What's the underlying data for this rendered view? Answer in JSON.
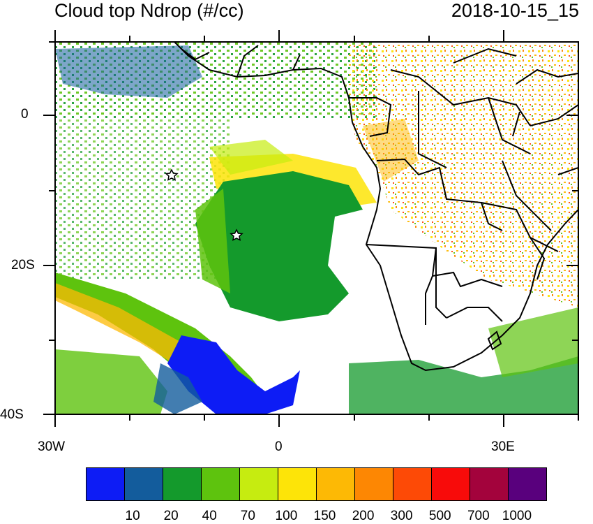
{
  "title": "Cloud top Ndrop (#/cc)",
  "datetime": "2018-10-15_15",
  "axes": {
    "y_ticks": [
      "0",
      "20S",
      "40S"
    ],
    "x_ticks": [
      "30W",
      "0",
      "30E"
    ]
  },
  "colorbar": {
    "colors": [
      "#0d1cf5",
      "#135c9c",
      "#149a2c",
      "#5ec30e",
      "#c6ec10",
      "#fde408",
      "#fdb905",
      "#fd8703",
      "#fd4a06",
      "#f80b0a",
      "#a3033c",
      "#59007d"
    ],
    "labels": [
      "10",
      "20",
      "40",
      "70",
      "100",
      "150",
      "200",
      "300",
      "500",
      "700",
      "1000"
    ]
  },
  "markers": [
    "star",
    "star"
  ]
}
